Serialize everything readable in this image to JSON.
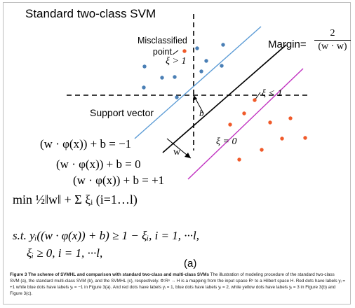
{
  "title": "Standard two-class SVM",
  "labels": {
    "misclassified_line1": "Misclassified",
    "misclassified_line2": "point",
    "xi_gt": "ξ > 1",
    "xi_lt": "ξ < 1",
    "xi_eq": "ξ = 0",
    "support_vector": "Support vector",
    "b": "b",
    "w": "w",
    "margin": "Margin=",
    "margin_numerator": "2",
    "margin_denominator": "(w · w)"
  },
  "equations": {
    "hyper_neg": "(w · φ(x)) + b = −1",
    "hyper_zero": "(w · φ(x)) + b = 0",
    "hyper_pos": "(w · φ(x)) + b = +1",
    "objective": "min ½‖w‖ + Σ ξᵢ  (i=1…l)",
    "constraint1": "s.t. yᵢ((w · φ(x)) + b) ≥ 1 − ξᵢ, i = 1, ···l,",
    "constraint2": "ξᵢ ≥ 0, i = 1, ···l,"
  },
  "panel_label": "(a)",
  "caption": {
    "heading": "Figure 3 The scheme of SVMHL and comparison with standard two-class and multi-class SVMs",
    "body": "The illustration of modeling procedure of the standard two-class SVM (a), the standard multi-class SVM (b), and the SVMHL (c), respectively. Φ:Rⁿ → H is a mapping from the input space Rⁿ to a Hilbert space H. Red dots have labels yᵢ = +1 while blue dots have labels yᵢ = −1 in Figure 3(a). And red dots have labels yᵢ = 1, blue dots have labels yᵢ = 2, while yellow dots have labels yᵢ = 3 in Figure 3(b) and Figure 3(c)."
  },
  "colors": {
    "red_dot": "#f05a2a",
    "blue_dot": "#4a7fb5",
    "blue_line": "#5b9bd5",
    "magenta_line": "#c030c0",
    "axis": "#000000"
  }
}
